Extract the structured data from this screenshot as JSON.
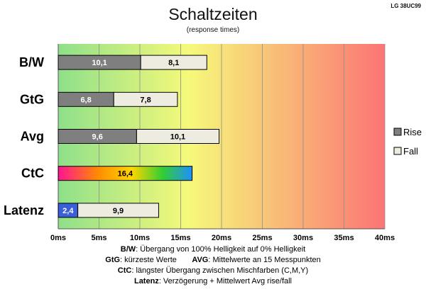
{
  "header": {
    "title": "Schaltzeiten",
    "subtitle": "(response times)",
    "model": "LG 38UC99"
  },
  "chart_data": {
    "type": "bar",
    "orientation": "horizontal",
    "stacked": true,
    "categories": [
      "B/W",
      "GtG",
      "Avg",
      "CtC",
      "Latenz"
    ],
    "series": [
      {
        "name": "Rise",
        "values": [
          10.1,
          6.8,
          9.6,
          16.4,
          2.4
        ],
        "labels": [
          "10,1",
          "6,8",
          "9,6",
          "16,4",
          "2,4"
        ]
      },
      {
        "name": "Fall",
        "values": [
          8.1,
          7.8,
          10.1,
          null,
          9.9
        ],
        "labels": [
          "8,1",
          "7,8",
          "10,1",
          "",
          "9,9"
        ]
      }
    ],
    "xlim": [
      0,
      40
    ],
    "xticks": [
      0,
      5,
      10,
      15,
      20,
      25,
      30,
      35,
      40
    ],
    "xtick_labels": [
      "0ms",
      "5ms",
      "10ms",
      "15ms",
      "20ms",
      "25ms",
      "30ms",
      "35ms",
      "40ms"
    ],
    "grid": "vertical",
    "background_gradient": [
      "#8ee08a",
      "#f6f97a",
      "#fb7474"
    ],
    "legend_position": "right",
    "colors": {
      "rise": "#7f7f7f",
      "fall": "#eeece1",
      "ctc_gradient": [
        "#ff1493",
        "#ff8c00",
        "#ffd700",
        "#32cd32",
        "#1e90ff"
      ],
      "latenz_rise": "#3a5fd9"
    }
  },
  "notes": [
    {
      "term": "B/W",
      "text": ":  Übergang von 100% Helligkeit auf 0% Helligkeit"
    },
    {
      "term": "GtG",
      "text": ": kürzeste  Werte",
      "term2": "AVG",
      "text2": ": Mittelwerte  an 15 Messpunkten"
    },
    {
      "term": "CtC",
      "text": ": längster Übergang  zwischen Mischfarben (C,M,Y)"
    },
    {
      "term": "Latenz",
      "text": ": Verzögerung  + Mittelwert  Avg rise/fall"
    }
  ]
}
